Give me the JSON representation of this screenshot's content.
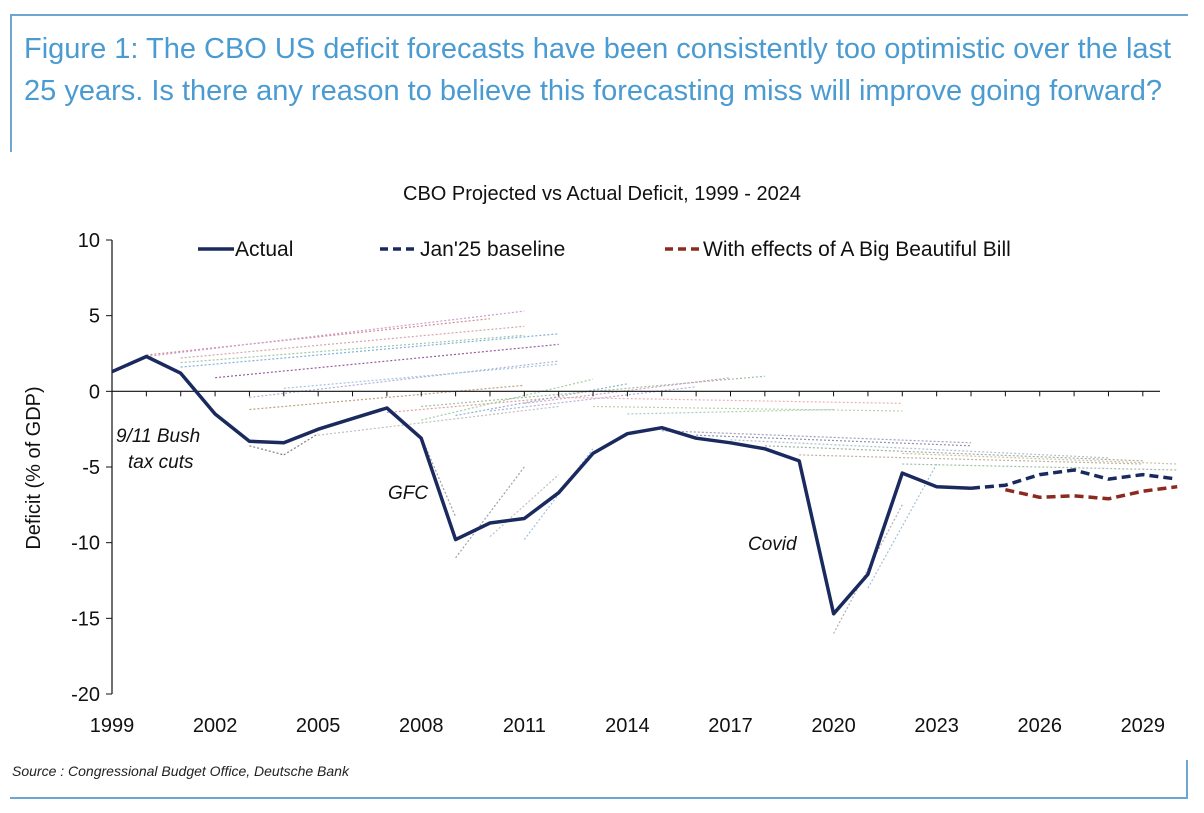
{
  "figure_title": "Figure 1: The CBO US deficit forecasts have been consistently too optimistic over the last 25 years. Is there any reason to believe this forecasting miss will improve going forward?",
  "source": "Source : Congressional Budget Office, Deutsche Bank",
  "colors": {
    "accent": "#4a9bd1",
    "actual": "#1b2a5e",
    "baseline": "#1b2a5e",
    "bbb": "#8b2a1e"
  },
  "chart_data": {
    "type": "line",
    "title": "CBO Projected vs Actual Deficit, 1999 - 2024",
    "ylabel": "Deficit (% of GDP)",
    "xlabel": "",
    "xlim": [
      1999,
      2029.5
    ],
    "ylim": [
      -20,
      10
    ],
    "x_ticks": [
      "1999",
      "2002",
      "2005",
      "2008",
      "2011",
      "2014",
      "2017",
      "2020",
      "2023",
      "2026",
      "2029"
    ],
    "y_ticks": [
      "10",
      "5",
      "0",
      "-5",
      "-10",
      "-15",
      "-20"
    ],
    "grid": false,
    "legend": "top",
    "series": [
      {
        "name": "Actual",
        "style": "solid",
        "x": [
          1999,
          2000,
          2001,
          2002,
          2003,
          2004,
          2005,
          2006,
          2007,
          2008,
          2009,
          2010,
          2011,
          2012,
          2013,
          2014,
          2015,
          2016,
          2017,
          2018,
          2019,
          2020,
          2021,
          2022,
          2023,
          2024
        ],
        "y": [
          1.3,
          2.3,
          1.2,
          -1.5,
          -3.3,
          -3.4,
          -2.5,
          -1.8,
          -1.1,
          -3.1,
          -9.8,
          -8.7,
          -8.4,
          -6.7,
          -4.1,
          -2.8,
          -2.4,
          -3.1,
          -3.4,
          -3.8,
          -4.6,
          -14.7,
          -12.1,
          -5.4,
          -6.3,
          -6.4
        ]
      },
      {
        "name": "Jan'25 baseline",
        "style": "dashed",
        "x": [
          2024,
          2025,
          2026,
          2027,
          2028,
          2029,
          2030
        ],
        "y": [
          -6.4,
          -6.2,
          -5.5,
          -5.2,
          -5.8,
          -5.5,
          -5.8
        ]
      },
      {
        "name": "With effects of A Big Beautiful Bill",
        "style": "dashed",
        "x": [
          2025,
          2026,
          2027,
          2028,
          2029,
          2030
        ],
        "y": [
          -6.5,
          -7.0,
          -6.9,
          -7.1,
          -6.6,
          -6.3
        ]
      }
    ],
    "vintage_projections": [
      {
        "x": [
          2000,
          2010
        ],
        "y": [
          2.4,
          4.8
        ],
        "color": "#d98c8c"
      },
      {
        "x": [
          2000,
          2011
        ],
        "y": [
          2.3,
          5.3
        ],
        "color": "#c9a0d0"
      },
      {
        "x": [
          2001,
          2011
        ],
        "y": [
          2.2,
          4.3
        ],
        "color": "#d9a6a6"
      },
      {
        "x": [
          2001,
          2012
        ],
        "y": [
          1.6,
          3.8
        ],
        "color": "#7fb0e0"
      },
      {
        "x": [
          2001,
          2011
        ],
        "y": [
          1.9,
          3.7
        ],
        "color": "#9fc9a0"
      },
      {
        "x": [
          2002,
          2012
        ],
        "y": [
          0.9,
          3.1
        ],
        "color": "#9c5c9c"
      },
      {
        "x": [
          2003,
          2012
        ],
        "y": [
          -0.4,
          2.0
        ],
        "color": "#b0b0d8"
      },
      {
        "x": [
          2004,
          2012
        ],
        "y": [
          0.2,
          1.8
        ],
        "color": "#a0c8e0"
      },
      {
        "x": [
          2003,
          2011
        ],
        "y": [
          -1.2,
          0.4
        ],
        "color": "#c0a080"
      },
      {
        "x": [
          2005,
          2012
        ],
        "y": [
          -2.9,
          -1.0
        ],
        "color": "#c0c0c0"
      },
      {
        "x": [
          2007,
          2012
        ],
        "y": [
          -1.4,
          -0.4
        ],
        "color": "#e0a0a0"
      },
      {
        "x": [
          2008,
          2013
        ],
        "y": [
          -1.9,
          0.8
        ],
        "color": "#a0d0a0"
      },
      {
        "x": [
          2009,
          2014
        ],
        "y": [
          -1.6,
          0.5
        ],
        "color": "#90b0d0"
      },
      {
        "x": [
          2008,
          2018
        ],
        "y": [
          -1.0,
          1.0
        ],
        "color": "#a0c0a0"
      },
      {
        "x": [
          2010,
          2016
        ],
        "y": [
          -1.3,
          0.3
        ],
        "color": "#b0b0e0"
      },
      {
        "x": [
          2011,
          2017
        ],
        "y": [
          -0.8,
          0.9
        ],
        "color": "#d0a0c0"
      },
      {
        "x": [
          2012,
          2022
        ],
        "y": [
          -0.4,
          -0.8
        ],
        "color": "#f0b0b0"
      },
      {
        "x": [
          2013,
          2022
        ],
        "y": [
          -1.0,
          -1.3
        ],
        "color": "#c0d0a0"
      },
      {
        "x": [
          2014,
          2020
        ],
        "y": [
          -1.5,
          -1.2
        ],
        "color": "#a0d0c0"
      },
      {
        "x": [
          2015,
          2024
        ],
        "y": [
          -2.6,
          -3.4
        ],
        "color": "#a0a0c0"
      },
      {
        "x": [
          2016,
          2024
        ],
        "y": [
          -2.9,
          -3.6
        ],
        "color": "#9090b0"
      },
      {
        "x": [
          2017,
          2028
        ],
        "y": [
          -3.2,
          -4.4
        ],
        "color": "#b0c0d0"
      },
      {
        "x": [
          2018,
          2029
        ],
        "y": [
          -3.6,
          -4.6
        ],
        "color": "#a0b0a0"
      },
      {
        "x": [
          2019,
          2029
        ],
        "y": [
          -4.2,
          -4.8
        ],
        "color": "#c0b0a0"
      },
      {
        "x": [
          2022,
          2030
        ],
        "y": [
          -4.1,
          -4.8
        ],
        "color": "#d0c0a0"
      },
      {
        "x": [
          2022,
          2030
        ],
        "y": [
          -4.8,
          -5.2
        ],
        "color": "#9fc0a0"
      },
      {
        "x": [
          2009,
          2011
        ],
        "y": [
          -11.0,
          -5.0
        ],
        "color": "#a0a0a0"
      },
      {
        "x": [
          2008,
          2009
        ],
        "y": [
          -3.0,
          -8.3
        ],
        "color": "#a0a0a0"
      },
      {
        "x": [
          2010,
          2012
        ],
        "y": [
          -9.6,
          -5.5
        ],
        "color": "#c0c0c0"
      },
      {
        "x": [
          2011,
          2013
        ],
        "y": [
          -9.8,
          -3.8
        ],
        "color": "#a0c0e0"
      },
      {
        "x": [
          2020,
          2022
        ],
        "y": [
          -16.0,
          -7.5
        ],
        "color": "#b0b0b0"
      },
      {
        "x": [
          2021,
          2023
        ],
        "y": [
          -13.0,
          -4.8
        ],
        "color": "#a0c0d0"
      },
      {
        "x": [
          2003,
          2004
        ],
        "y": [
          -3.6,
          -4.2
        ],
        "color": "#808080"
      },
      {
        "x": [
          2004,
          2005
        ],
        "y": [
          -4.2,
          -2.8
        ],
        "color": "#808080"
      }
    ],
    "annotations": [
      "9/11 Bush",
      "tax cuts",
      "GFC",
      "Covid"
    ]
  }
}
